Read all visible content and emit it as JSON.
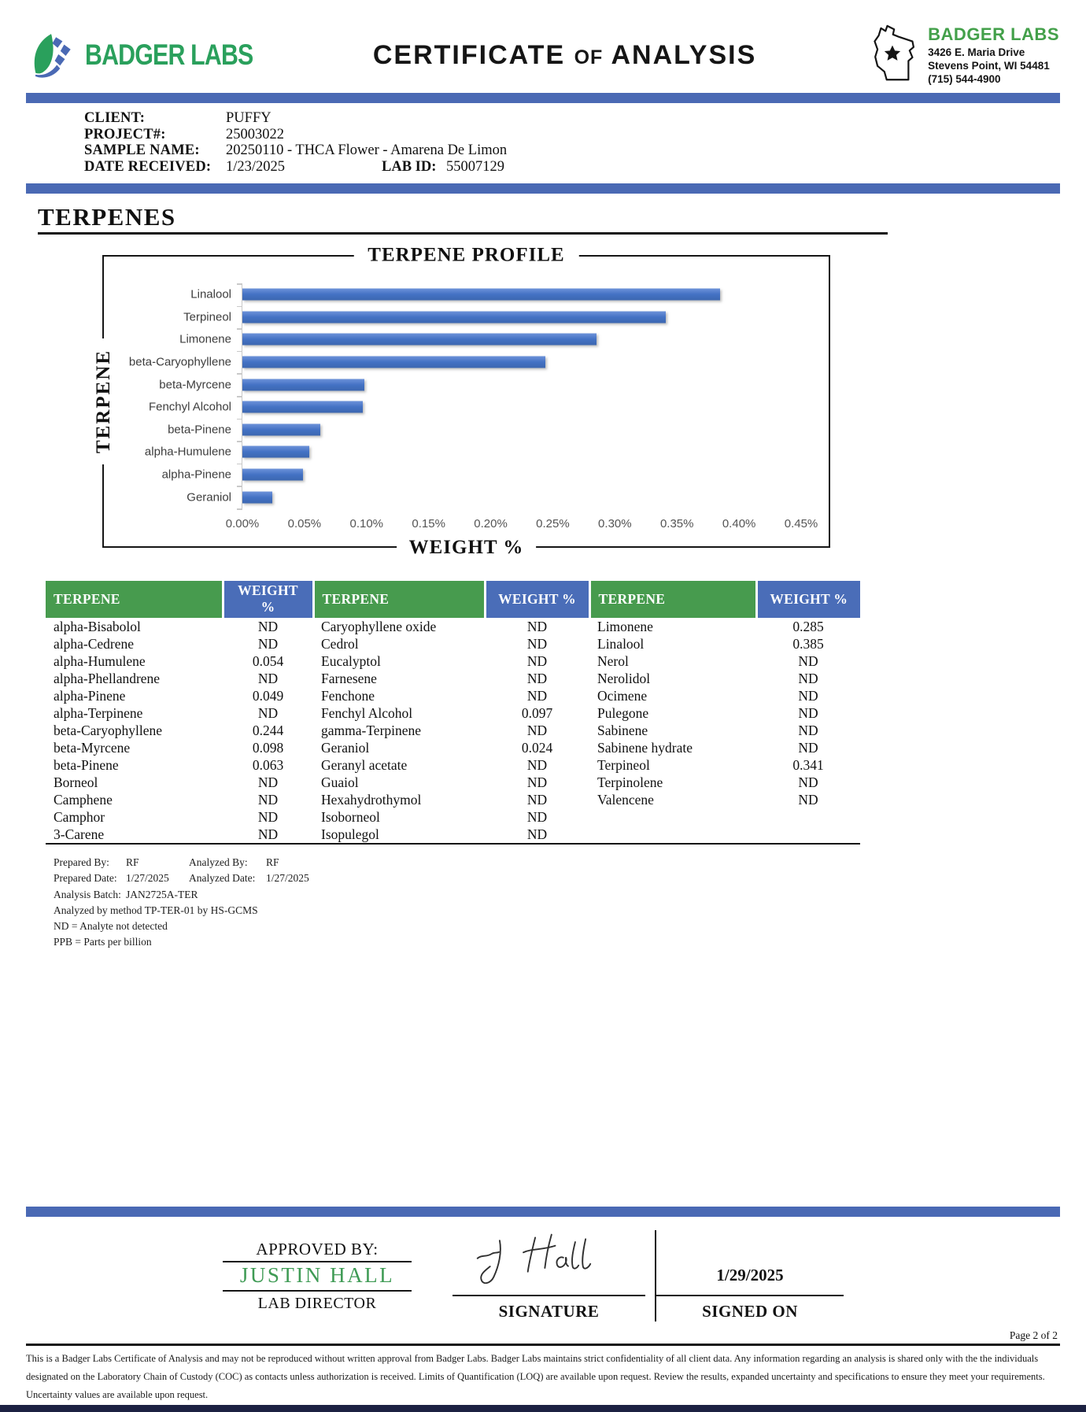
{
  "header": {
    "brand_left": "BADGER LABS",
    "title_part1": "CERTIFICATE",
    "title_of": "OF",
    "title_part2": "ANALYSIS",
    "lab_name": "BADGER LABS",
    "address_line1": "3426 E. Maria Drive",
    "address_line2": "Stevens Point, WI 54481",
    "phone": "(715) 544-4900"
  },
  "sample_info": {
    "client_label": "CLIENT:",
    "client": "PUFFY",
    "project_label": "PROJECT#:",
    "project": "25003022",
    "sample_name_label": "SAMPLE NAME:",
    "sample_name": "20250110 - THCA Flower - Amarena De Limon",
    "date_received_label": "DATE RECEIVED:",
    "date_received": "1/23/2025",
    "lab_id_label": "LAB ID:",
    "lab_id": "55007129"
  },
  "section_title": "TERPENES",
  "chart_data": {
    "type": "bar",
    "orientation": "horizontal",
    "title": "TERPENE PROFILE",
    "xlabel": "WEIGHT %",
    "ylabel": "TERPENE",
    "categories": [
      "Linalool",
      "Terpineol",
      "Limonene",
      "beta-Caryophyllene",
      "beta-Myrcene",
      "Fenchyl Alcohol",
      "beta-Pinene",
      "alpha-Humulene",
      "alpha-Pinene",
      "Geraniol"
    ],
    "values": [
      0.385,
      0.341,
      0.285,
      0.244,
      0.098,
      0.097,
      0.063,
      0.054,
      0.049,
      0.024
    ],
    "xlim": [
      0,
      0.45
    ],
    "tick_step": 0.05,
    "tick_labels": [
      "0.00%",
      "0.05%",
      "0.10%",
      "0.15%",
      "0.20%",
      "0.25%",
      "0.30%",
      "0.35%",
      "0.40%",
      "0.45%"
    ],
    "grid": false,
    "legend": null,
    "bar_color": "#4472c4"
  },
  "results_table": {
    "headers": [
      "TERPENE",
      "WEIGHT %",
      "TERPENE",
      "WEIGHT %",
      "TERPENE",
      "WEIGHT %"
    ],
    "rows": [
      [
        "alpha-Bisabolol",
        "ND",
        "Caryophyllene oxide",
        "ND",
        "Limonene",
        "0.285"
      ],
      [
        "alpha-Cedrene",
        "ND",
        "Cedrol",
        "ND",
        "Linalool",
        "0.385"
      ],
      [
        "alpha-Humulene",
        "0.054",
        "Eucalyptol",
        "ND",
        "Nerol",
        "ND"
      ],
      [
        "alpha-Phellandrene",
        "ND",
        "Farnesene",
        "ND",
        "Nerolidol",
        "ND"
      ],
      [
        "alpha-Pinene",
        "0.049",
        "Fenchone",
        "ND",
        "Ocimene",
        "ND"
      ],
      [
        "alpha-Terpinene",
        "ND",
        "Fenchyl Alcohol",
        "0.097",
        "Pulegone",
        "ND"
      ],
      [
        "beta-Caryophyllene",
        "0.244",
        "gamma-Terpinene",
        "ND",
        "Sabinene",
        "ND"
      ],
      [
        "beta-Myrcene",
        "0.098",
        "Geraniol",
        "0.024",
        "Sabinene hydrate",
        "ND"
      ],
      [
        "beta-Pinene",
        "0.063",
        "Geranyl acetate",
        "ND",
        "Terpineol",
        "0.341"
      ],
      [
        "Borneol",
        "ND",
        "Guaiol",
        "ND",
        "Terpinolene",
        "ND"
      ],
      [
        "Camphene",
        "ND",
        "Hexahydrothymol",
        "ND",
        "Valencene",
        "ND"
      ],
      [
        "Camphor",
        "ND",
        "Isoborneol",
        "ND",
        "",
        ""
      ],
      [
        "3-Carene",
        "ND",
        "Isopulegol",
        "ND",
        "",
        ""
      ]
    ]
  },
  "analysis_notes": {
    "prepared_by_label": "Prepared By:",
    "prepared_by": "RF",
    "analyzed_by_label": "Analyzed By:",
    "analyzed_by": "RF",
    "prepared_date_label": "Prepared Date:",
    "prepared_date": "1/27/2025",
    "analyzed_date_label": "Analyzed Date:",
    "analyzed_date": "1/27/2025",
    "analysis_batch_label": "Analysis Batch:",
    "analysis_batch": "JAN2725A-TER",
    "method_note": "Analyzed by method TP-TER-01 by HS-GCMS",
    "nd_note": "ND = Analyte not detected",
    "ppb_note": "PPB = Parts per billion"
  },
  "approval": {
    "approved_by_label": "APPROVED BY:",
    "approver_name": "JUSTIN HALL",
    "approver_title": "LAB DIRECTOR",
    "signature_label": "SIGNATURE",
    "signed_on_label": "SIGNED ON",
    "signed_date": "1/29/2025"
  },
  "footer": {
    "page_label": "Page 2 of 2",
    "disclaimer": "This is a Badger Labs Certificate of Analysis and may not be reproduced without written approval from Badger Labs. Badger Labs maintains strict confidentiality of all client data. Any information regarding an analysis is shared only with the the individuals designated on the Laboratory Chain of Custody (COC) as contacts unless authorization is received. Limits of Quantification (LOQ) are available upon request. Review the results, expanded uncertainty and specifications to ensure they meet your requirements. Uncertainty values are available upon request."
  },
  "colors": {
    "divider_blue": "#4a69b4",
    "chart_bar_blue": "#4472c4",
    "table_header_green": "#479b4e",
    "table_header_blue": "#4a6db8",
    "brand_green": "#2aa05c",
    "approver_green": "#3f9b55",
    "bottom_bar_navy": "#1c2142"
  }
}
